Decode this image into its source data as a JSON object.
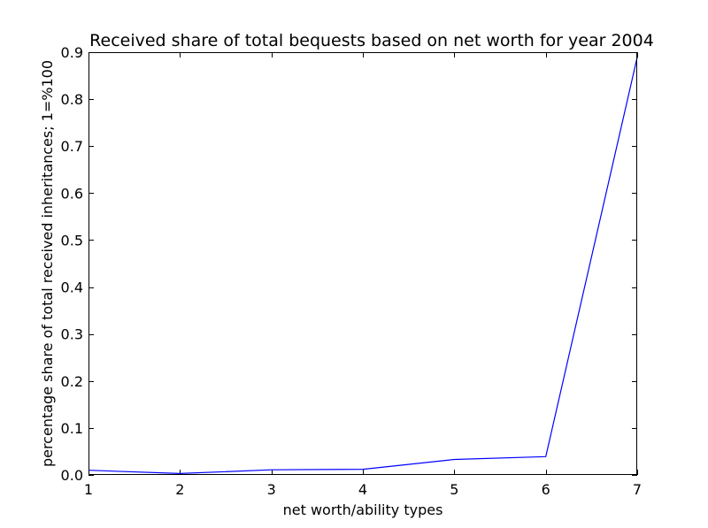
{
  "chart_data": {
    "type": "line",
    "title": "Received share of total bequests based on net worth for year 2004",
    "xlabel": "net worth/ability types",
    "ylabel": "percentage share of total received inheritances; 1=%100",
    "x": [
      1,
      2,
      3,
      4,
      5,
      6,
      7
    ],
    "series": [
      {
        "values": [
          0.01,
          0.003,
          0.011,
          0.012,
          0.033,
          0.039,
          0.889
        ],
        "color": "#0000ff"
      }
    ],
    "xlim": [
      1,
      7
    ],
    "ylim": [
      0.0,
      0.9
    ],
    "xticks": [
      1,
      2,
      3,
      4,
      5,
      6,
      7
    ],
    "xtick_labels": [
      "1",
      "2",
      "3",
      "4",
      "5",
      "6",
      "7"
    ],
    "yticks": [
      0.0,
      0.1,
      0.2,
      0.3,
      0.4,
      0.5,
      0.6,
      0.7,
      0.8,
      0.9
    ],
    "ytick_labels": [
      "0.0",
      "0.1",
      "0.2",
      "0.3",
      "0.4",
      "0.5",
      "0.6",
      "0.7",
      "0.8",
      "0.9"
    ],
    "grid": false,
    "legend": false
  }
}
